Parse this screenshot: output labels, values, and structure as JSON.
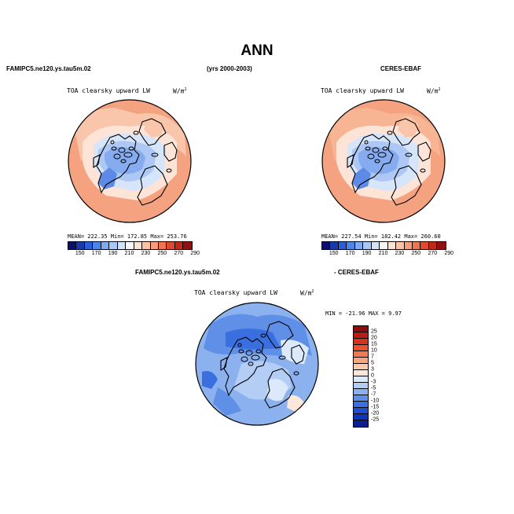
{
  "title": "ANN",
  "header": {
    "left": "FAMIPC5.ne120.ys.tau5m.02",
    "center": "(yrs 2000-2003)",
    "right": "CERES-EBAF"
  },
  "panel_model": {
    "variable": "TOA clearsky upward LW",
    "units": "W/m",
    "units_sup": "2",
    "stats": "MEAN= 222.35   Min= 172.85   Max= 253.76"
  },
  "panel_obs": {
    "variable": "TOA clearsky upward LW",
    "units": "W/m",
    "units_sup": "2",
    "stats": "MEAN= 227.54   Min= 182.42   Max= 260.60"
  },
  "diff_header": {
    "left": "FAMIPC5.ne120.ys.tau5m.02",
    "right": "- CERES-EBAF"
  },
  "panel_diff": {
    "variable": "TOA clearsky upward LW",
    "units": "W/m",
    "units_sup": "2",
    "stats": "MIN = -21.96  MAX =    9.97"
  },
  "colorbar_main": {
    "labels": [
      "150",
      "170",
      "190",
      "210",
      "230",
      "250",
      "270",
      "290"
    ],
    "colors": [
      "#08116b",
      "#1a3aa8",
      "#2a5fd6",
      "#4a86e8",
      "#7eaaf0",
      "#a9c8f5",
      "#d3e4fa",
      "#f6f6f6",
      "#fde3d2",
      "#fbc3a6",
      "#f79d79",
      "#ef744f",
      "#dd4a2d",
      "#c0281a",
      "#921010"
    ]
  },
  "colorbar_diff": {
    "labels": [
      "25",
      "20",
      "15",
      "10",
      "7",
      "5",
      "3",
      "0",
      "-3",
      "-5",
      "-7",
      "-10",
      "-15",
      "-20",
      "-25"
    ],
    "colors": [
      "#8e0c0c",
      "#b81c14",
      "#d6331e",
      "#e8522f",
      "#f27a52",
      "#f8a47c",
      "#fcc9ad",
      "#fde6da",
      "#dbe9fb",
      "#b3cdf5",
      "#8ab0ef",
      "#5f8fe6",
      "#3a6fdf",
      "#1f4fd0",
      "#1034b8",
      "#0b1d8f"
    ]
  }
}
